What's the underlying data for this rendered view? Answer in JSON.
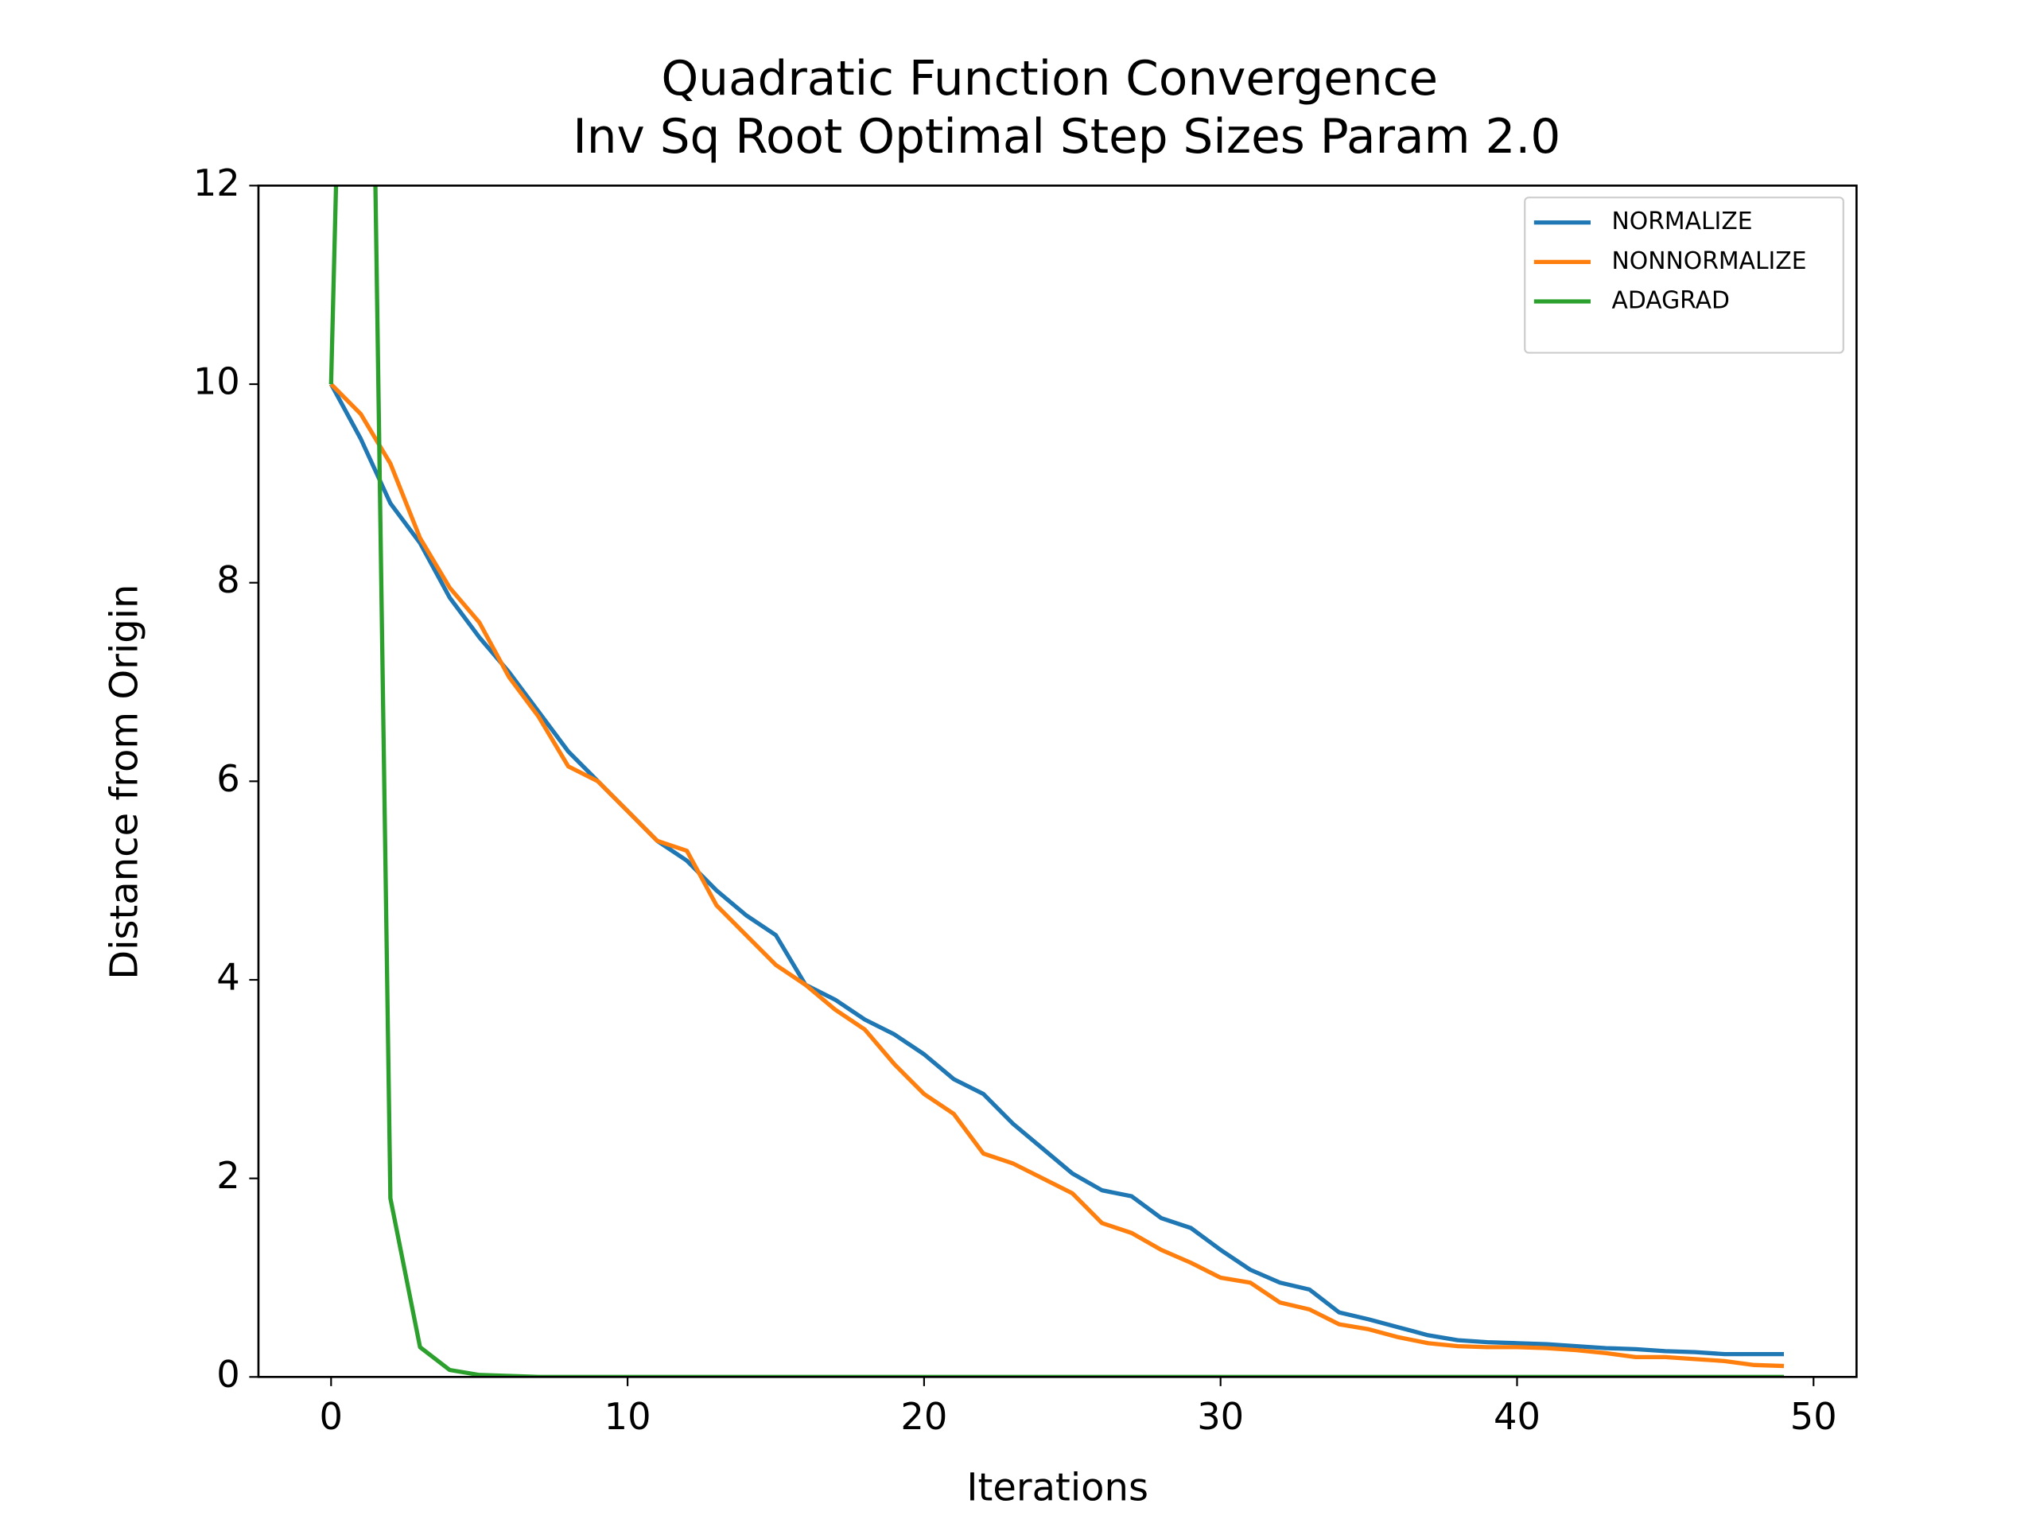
{
  "chart_data": {
    "type": "line",
    "title": "Quadratic Function Convergence",
    "subtitle": "Inv Sq Root Optimal Step Sizes Param 2.0",
    "x_label": "Iterations",
    "y_label": "Distance from Origin",
    "x": [
      0,
      1,
      2,
      3,
      4,
      5,
      6,
      7,
      8,
      9,
      10,
      11,
      12,
      13,
      14,
      15,
      16,
      17,
      18,
      19,
      20,
      21,
      22,
      23,
      24,
      25,
      26,
      27,
      28,
      29,
      30,
      31,
      32,
      33,
      34,
      35,
      36,
      37,
      38,
      39,
      40,
      41,
      42,
      43,
      44,
      45,
      46,
      47,
      48,
      49
    ],
    "series": [
      {
        "name": "NORMALIZE",
        "color": "#1f77b4",
        "values": [
          10,
          9.45,
          8.8,
          8.4,
          7.85,
          7.45,
          7.1,
          6.7,
          6.3,
          6.0,
          5.7,
          5.4,
          5.2,
          4.9,
          4.65,
          4.45,
          3.95,
          3.8,
          3.6,
          3.45,
          3.25,
          3.0,
          2.85,
          2.55,
          2.3,
          2.05,
          1.88,
          1.82,
          1.6,
          1.5,
          1.28,
          1.08,
          0.95,
          0.88,
          0.65,
          0.58,
          0.5,
          0.42,
          0.37,
          0.35,
          0.34,
          0.33,
          0.31,
          0.29,
          0.28,
          0.26,
          0.25,
          0.23,
          0.23,
          0.23
        ]
      },
      {
        "name": "NONNORMALIZE",
        "color": "#ff7f0e",
        "values": [
          10,
          9.7,
          9.2,
          8.45,
          7.95,
          7.6,
          7.05,
          6.65,
          6.15,
          6.0,
          5.7,
          5.4,
          5.3,
          4.75,
          4.45,
          4.15,
          3.95,
          3.7,
          3.5,
          3.15,
          2.85,
          2.65,
          2.25,
          2.15,
          2.0,
          1.85,
          1.55,
          1.45,
          1.28,
          1.15,
          1.0,
          0.95,
          0.75,
          0.68,
          0.53,
          0.48,
          0.4,
          0.34,
          0.31,
          0.3,
          0.3,
          0.29,
          0.27,
          0.24,
          0.2,
          0.2,
          0.18,
          0.16,
          0.12,
          0.11
        ]
      },
      {
        "name": "ADAGRAD",
        "color": "#2ca02c",
        "values": [
          10,
          22,
          1.8,
          0.3,
          0.07,
          0.02,
          0.01,
          0,
          0,
          0,
          0,
          0,
          0,
          0,
          0,
          0,
          0,
          0,
          0,
          0,
          0,
          0,
          0,
          0,
          0,
          0,
          0,
          0,
          0,
          0,
          0,
          0,
          0,
          0,
          0,
          0,
          0,
          0,
          0,
          0,
          0,
          0,
          0,
          0,
          0,
          0,
          0,
          0,
          0,
          0
        ]
      }
    ],
    "xlim": [
      -2.45,
      51.45
    ],
    "ylim": [
      0,
      12
    ],
    "xticks": [
      0,
      10,
      20,
      30,
      40,
      50
    ],
    "yticks": [
      0,
      2,
      4,
      6,
      8,
      10,
      12
    ],
    "legend": "upper right"
  }
}
